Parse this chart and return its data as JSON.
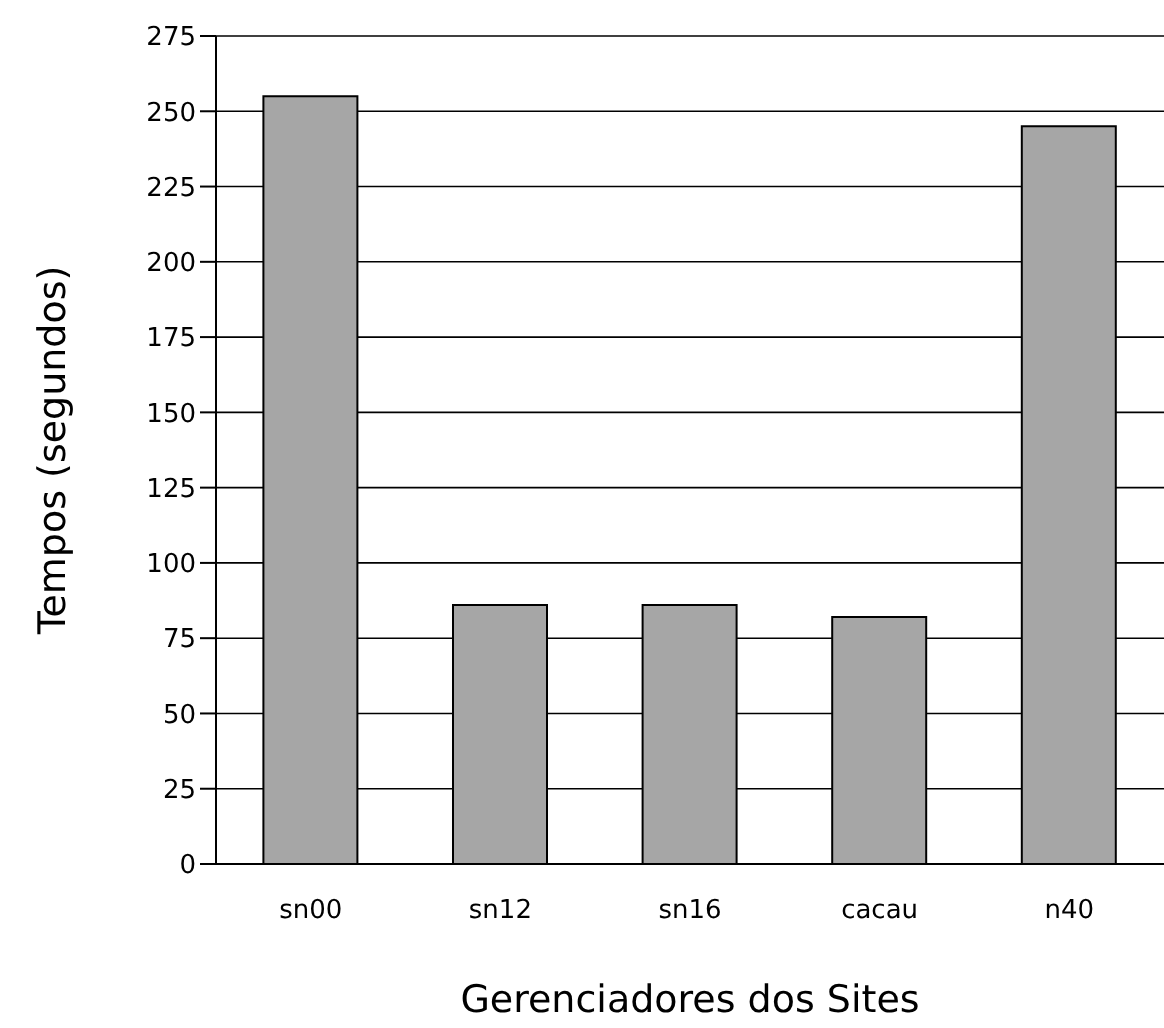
{
  "chart_data": {
    "type": "bar",
    "xlabel": "Gerenciadores dos Sites",
    "ylabel": "Tempos (segundos)",
    "categories": [
      "sn00",
      "sn12",
      "sn16",
      "cacau",
      "n40"
    ],
    "values": [
      255,
      86,
      86,
      82,
      245
    ],
    "color": "#a6a6a6",
    "ylim": [
      0,
      275
    ],
    "yticks": [
      0,
      25,
      50,
      75,
      100,
      125,
      150,
      175,
      200,
      225,
      250,
      275
    ],
    "grid": "y"
  }
}
